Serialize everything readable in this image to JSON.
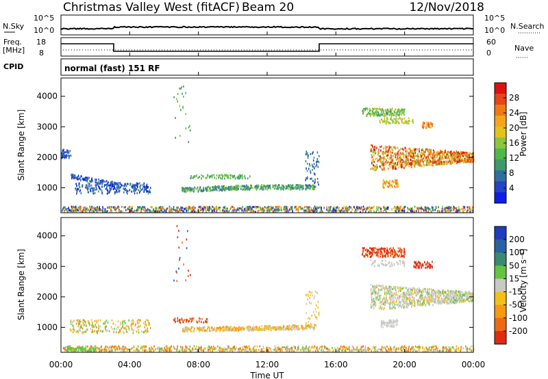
{
  "header": {
    "title": "Christmas Valley West (fitACF)",
    "beam": "Beam 20",
    "date": "12/Nov/2018"
  },
  "status_panel": {
    "nsky_label": "N.Sky",
    "nsky_ticks": [
      "10^5",
      "10^0"
    ],
    "nsearch_label": "N.Search",
    "freq_label_line1": "Freq.",
    "freq_label_line2": "[MHz]",
    "freq_ticks": [
      "18",
      "8"
    ],
    "nave_label": "Nave",
    "nave_ticks": [
      "60",
      "0"
    ],
    "cpid_label": "CPID",
    "cpid_text": "normal (fast) 151 RF"
  },
  "chart_data": [
    {
      "type": "heatmap",
      "name": "power",
      "ylabel": "Slant Range [km]",
      "yticks": [
        "1000",
        "2000",
        "3000",
        "4000"
      ],
      "ylim": [
        180,
        4600
      ],
      "colorbar_label": "Power [dB]",
      "colorbar_ticks": [
        "4",
        "8",
        "12",
        "16",
        "20",
        "24",
        "28"
      ],
      "colors": [
        "#0b1fe6",
        "#2244c8",
        "#2f6fa0",
        "#3f9a68",
        "#4fb84a",
        "#8cc63f",
        "#e3c21c",
        "#f7a41d",
        "#f07a12",
        "#e8431a",
        "#e01010"
      ]
    },
    {
      "type": "heatmap",
      "name": "velocity",
      "ylabel": "Slant Range [km]",
      "yticks": [
        "1000",
        "2000",
        "3000",
        "4000"
      ],
      "ylim": [
        180,
        4600
      ],
      "colorbar_label": "Velocity [m s⁻¹]",
      "colorbar_ticks": [
        "200",
        "100",
        "50",
        "15",
        "-15",
        "-50",
        "-100",
        "-200"
      ],
      "colors": [
        "#1f3bbf",
        "#2b62a5",
        "#3a8a6d",
        "#63c440",
        "#c9c9c3",
        "#f3c01a",
        "#f59a12",
        "#ee6a12",
        "#e12a10"
      ]
    }
  ],
  "xaxis": {
    "label": "Time UT",
    "ticks": [
      "00:00",
      "04:00",
      "08:00",
      "12:00",
      "16:00",
      "20:00",
      "00:00"
    ]
  }
}
